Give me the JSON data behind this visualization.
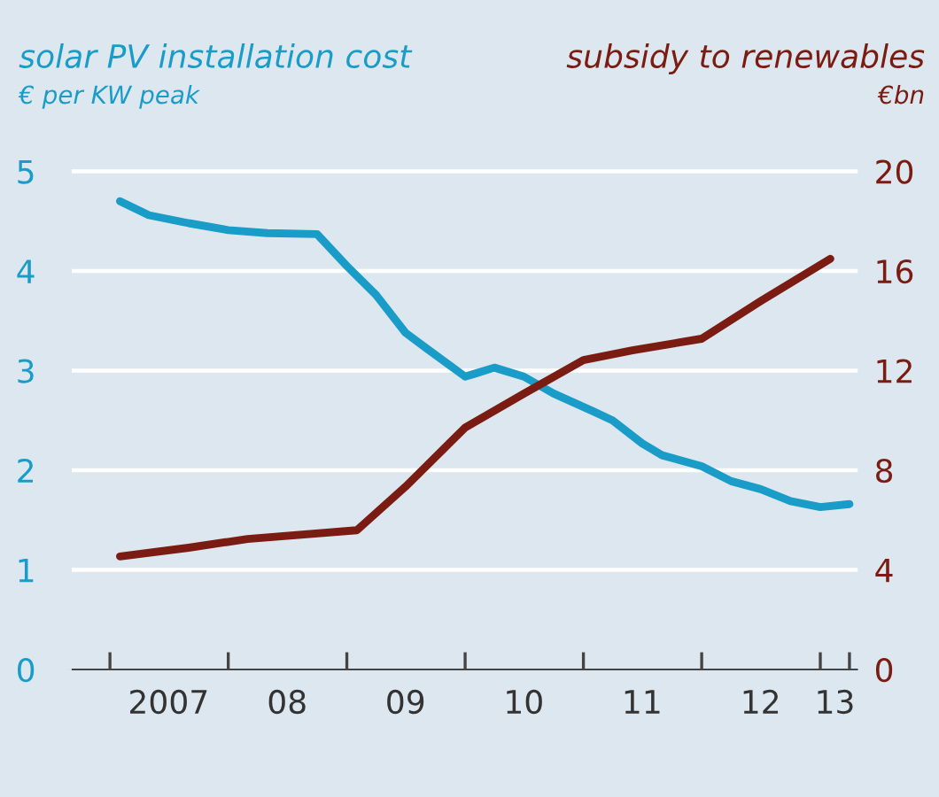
{
  "chart_data": {
    "type": "line",
    "ylabel": "€ per KW peak",
    "y2label": "€bn",
    "xlim": [
      "2006-09",
      "2013-05"
    ],
    "xticks": [
      {
        "value": "2007-01",
        "label": null
      },
      {
        "value": "2007-07",
        "label": "2007"
      },
      {
        "value": "2008-01",
        "label": null
      },
      {
        "value": "2008-07",
        "label": "08"
      },
      {
        "value": "2009-01",
        "label": null
      },
      {
        "value": "2009-07",
        "label": "09"
      },
      {
        "value": "2010-01",
        "label": null
      },
      {
        "value": "2010-07",
        "label": "10"
      },
      {
        "value": "2011-01",
        "label": null
      },
      {
        "value": "2011-07",
        "label": "11"
      },
      {
        "value": "2012-01",
        "label": null
      },
      {
        "value": "2012-07",
        "label": "12"
      },
      {
        "value": "2013-01",
        "label": null
      },
      {
        "value": "2013-02-15",
        "label": "13"
      },
      {
        "value": "2013-04",
        "label": null
      }
    ],
    "ylim": [
      0,
      5.2
    ],
    "yticks": [
      0,
      1,
      2,
      3,
      4,
      5
    ],
    "y2lim": [
      0,
      20.8
    ],
    "y2ticks": [
      0,
      4,
      8,
      12,
      16,
      20
    ],
    "grid": "y",
    "legend": false,
    "marker": "none",
    "line_style": "solid",
    "series": [
      {
        "name": "solar PV installation cost",
        "color": "#1a9cc8",
        "x": [
          "2007-02",
          "2007-05",
          "2007-09",
          "2008-01",
          "2008-05",
          "2008-10",
          "2009-01",
          "2009-04",
          "2009-07",
          "2009-09",
          "2010-01",
          "2010-02",
          "2010-04",
          "2010-07",
          "2010-10",
          "2011-02",
          "2011-04",
          "2011-07",
          "2011-09",
          "2012-01",
          "2012-04",
          "2012-07",
          "2012-10",
          "2013-01",
          "2013-04"
        ],
        "values": [
          4.7,
          4.56,
          4.48,
          4.41,
          4.38,
          4.37,
          4.05,
          3.76,
          3.38,
          3.23,
          2.94,
          2.97,
          3.03,
          2.94,
          2.77,
          2.59,
          2.5,
          2.27,
          2.15,
          2.04,
          1.89,
          1.81,
          1.69,
          1.63,
          1.66
        ]
      },
      {
        "name": "subsidy to renewables",
        "color": "#7b1c12",
        "axis": "y2",
        "x": [
          "2007-02",
          "2007-09",
          "2008-03",
          "2009-02",
          "2009-07",
          "2010-01",
          "2010-07",
          "2011-01",
          "2011-06",
          "2012-01",
          "2012-07",
          "2013-02"
        ],
        "values": [
          4.54,
          4.89,
          5.24,
          5.59,
          7.34,
          9.71,
          11.07,
          12.42,
          12.81,
          13.28,
          14.79,
          16.49
        ]
      }
    ]
  }
}
